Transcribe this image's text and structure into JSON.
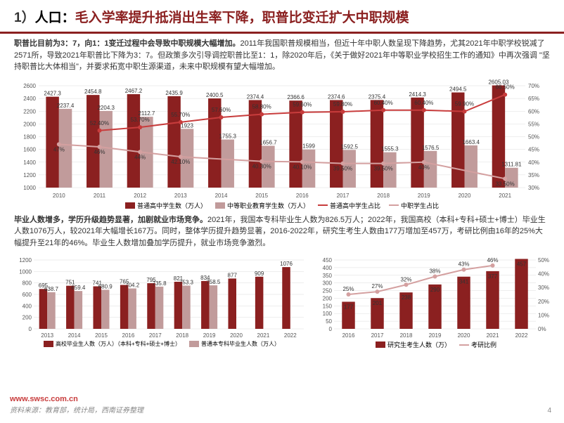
{
  "title_num": "1）",
  "title_black": "人口：",
  "title_red": "毛入学率提升抵消出生率下降，职普比变迁扩大中职规模",
  "para1": {
    "bold": "职普比目前为3：7，向1：1变迁过程中会导致中职规模大幅增加。",
    "text": "2011年我国职普规模相当，但近十年中职人数呈现下降趋势，尤其2021年中职学校锐减了2571所，导致2021年职普比下降为3：7。但政策多次引导调控职普比至1：1，除2020年后，《关于做好2021年中等职业学校招生工作的通知》中再次强调 \"坚持职普比大体相当\"，并要求拓宽中职生源渠道，未来中职规模有望大幅增加。"
  },
  "chart1": {
    "type": "grouped-bar-dual-line",
    "years": [
      "2010",
      "2011",
      "2012",
      "2013",
      "2014",
      "2015",
      "2016",
      "2017",
      "2018",
      "2019",
      "2020",
      "2021"
    ],
    "bar1": [
      2427.3,
      2454.8,
      2467.2,
      2435.9,
      2400.5,
      2374.4,
      2366.6,
      2374.6,
      2375.4,
      2414.3,
      2494.5,
      2605.03
    ],
    "bar2": [
      2237.4,
      2204.3,
      2112.7,
      1923,
      1755.3,
      1656.7,
      1599,
      1592.5,
      1555.3,
      1576.5,
      1663.4,
      1311.81
    ],
    "line1": [
      null,
      52.4,
      53.7,
      55.7,
      57.6,
      58.8,
      59.6,
      59.8,
      60.4,
      60.4,
      59.9,
      66.5
    ],
    "line2": [
      47,
      46,
      44,
      42.1,
      null,
      40.3,
      40.1,
      39.5,
      39.5,
      40.0,
      null,
      33.5
    ],
    "y_left_min": 1000,
    "y_left_max": 2600,
    "y_left_step": 200,
    "y_right_min": 30,
    "y_right_max": 70,
    "y_right_step": 5,
    "bar1_color": "#8b2020",
    "bar2_color": "#c19b9b",
    "line1_color": "#c83c3c",
    "line2_color": "#d4a0a0",
    "legend": [
      "普通高中学生数（万人）",
      "中等职业教育学生数（万人）",
      "普通高中学生占比",
      "中职学生占比"
    ]
  },
  "para2": {
    "bold": "毕业人数增多，学历升级趋势显著，加剧就业市场竞争。",
    "text": "2021年，我国本专科毕业生人数为826.5万人；2022年，我国高校（本科+专科+硕士+博士）毕业生人数1076万人，较2021年大幅增长167万。同时，整体学历提升趋势显著，2016-2022年，研究生考生人数由177万增加至457万，考研比例由16年的25%大幅提升至21年的46%。毕业生人数增加叠加学历提升，就业市场竞争激烈。"
  },
  "chart2": {
    "type": "grouped-bar",
    "years": [
      "2013",
      "2014",
      "2015",
      "2016",
      "2017",
      "2018",
      "2019",
      "2020",
      "2021",
      "2022"
    ],
    "bar1": [
      695,
      751,
      741,
      765,
      795,
      821,
      834,
      877,
      909,
      1076
    ],
    "bar2": [
      638.7,
      659.4,
      680.9,
      704.2,
      735.8,
      753.3,
      758.5,
      null,
      null,
      null
    ],
    "y_min": 0,
    "y_max": 1200,
    "y_step": 200,
    "bar1_color": "#8b2020",
    "bar2_color": "#c19b9b",
    "legend": [
      "高校毕业生人数（万人）（本科+专科+硕士+博士）",
      "普通本专科毕业生人数（万人）"
    ]
  },
  "chart3": {
    "type": "bar-line",
    "years": [
      "2016",
      "2017",
      "2018",
      "2019",
      "2020",
      "2021",
      "2022"
    ],
    "bars": [
      177,
      201,
      238,
      290,
      341,
      377,
      457
    ],
    "line": [
      25,
      27,
      32,
      38,
      43,
      46,
      null
    ],
    "y_left_min": 0,
    "y_left_max": 450,
    "y_left_step": 50,
    "y_right_min": 0,
    "y_right_max": 50,
    "y_right_step": 10,
    "bar_color": "#8b2020",
    "line_color": "#d4a0a0",
    "legend": [
      "研究生考生人数（万）",
      "考研比例"
    ]
  },
  "watermark": "www.swsc.com.cn",
  "source": "资料来源：教育部，统计局，西南证券整理",
  "page_num": "4"
}
